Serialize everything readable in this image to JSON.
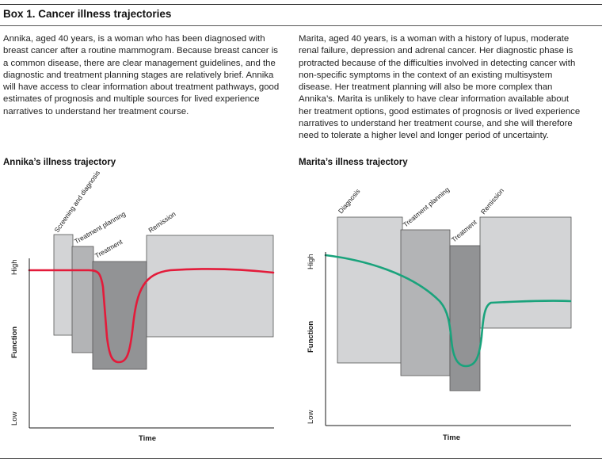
{
  "box_title": "Box 1. Cancer illness trajectories",
  "cases": [
    {
      "text": "Annika, aged 40 years, is a woman who has been diagnosed with breast cancer after a routine mammogram. Because breast cancer is a common disease, there are clear management guidelines, and the diagnostic and treatment planning stages are relatively brief. Annika will have access to clear information about treatment pathways, good estimates of prognosis and multiple sources for lived experience narratives to understand her treatment course.",
      "trajectory_title": "Annika’s illness trajectory",
      "phases": [
        "Screening and diagnosis",
        "Treatment planning",
        "Treatment",
        "Remission"
      ],
      "y_high": "High",
      "y_low": "Low",
      "y_title": "Function",
      "x_title": "Time",
      "line_color": "#e31b3a"
    },
    {
      "text": "Marita, aged 40 years, is a woman with a history of lupus, moderate renal failure, depression and adrenal cancer. Her diagnostic phase is protracted because of the difficulties involved in detecting cancer with non-specific symptoms in the context of an existing multisystem disease. Her treatment planning will also be more complex than Annika’s. Marita is unlikely to have clear information available about her treatment options, good estimates of prognosis or lived experience narratives to understand her treatment course, and she will therefore need to tolerate a higher level and longer period of uncertainty.",
      "trajectory_title": "Marita’s illness trajectory",
      "phases": [
        "Diagnosis",
        "Treatment planning",
        "Treatment",
        "Remission"
      ],
      "y_high": "High",
      "y_low": "Low",
      "y_title": "Function",
      "x_title": "Time",
      "line_color": "#1aa37c"
    }
  ],
  "colors": {
    "phase_light": "#d3d4d6",
    "phase_mid": "#b3b4b6",
    "phase_dark": "#929395",
    "axis": "#1a1a1a"
  }
}
